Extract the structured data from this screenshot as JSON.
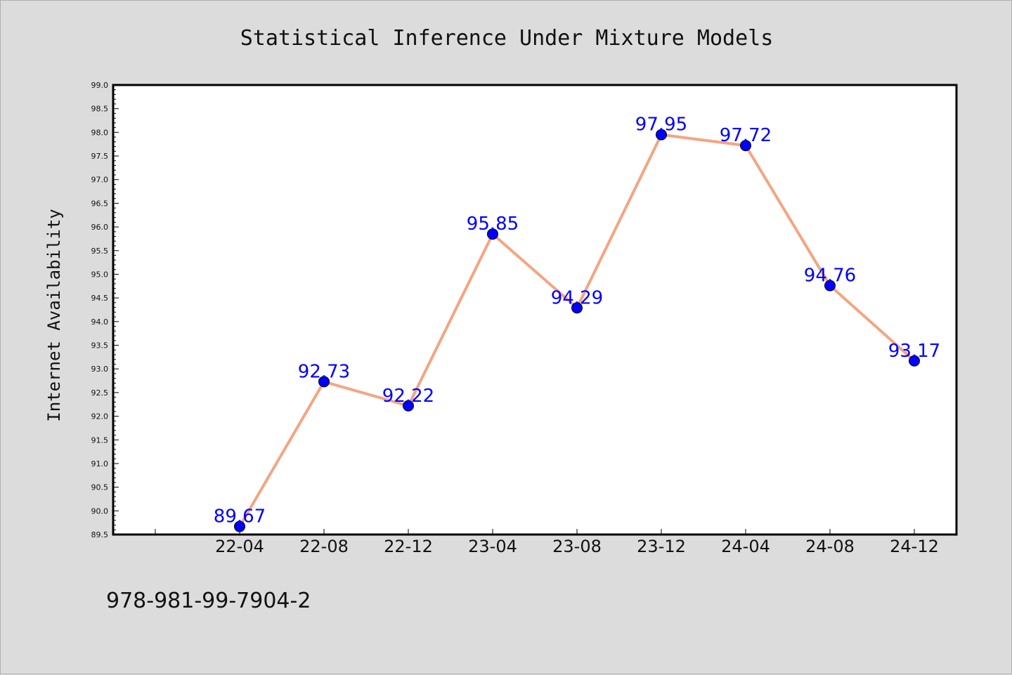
{
  "colors": {
    "background": "#dcdcdc",
    "plot_background": "#ffffff",
    "line": "#f4a582",
    "marker": "#0000ff",
    "data_label": "#0000ff"
  },
  "footer": {
    "isbn": "978-981-99-7904-2"
  },
  "chart_data": {
    "type": "line",
    "title": "Statistical Inference Under Mixture Models",
    "xlabel": "",
    "ylabel": "Internet Availability",
    "categories": [
      "22-04",
      "22-08",
      "22-12",
      "23-04",
      "23-08",
      "23-12",
      "24-04",
      "24-08",
      "24-12"
    ],
    "values": [
      89.67,
      92.73,
      92.22,
      95.85,
      94.29,
      97.95,
      97.72,
      94.76,
      93.17
    ],
    "data_labels": [
      "89.67",
      "92.73",
      "92.22",
      "95.85",
      "94.29",
      "97.95",
      "97.72",
      "94.76",
      "93.17"
    ],
    "ylim": [
      89.5,
      99.0
    ],
    "yticks": [
      "89.5",
      "90.0",
      "90.5",
      "91.0",
      "91.5",
      "92.0",
      "92.5",
      "93.0",
      "93.5",
      "94.0",
      "94.5",
      "95.0",
      "95.5",
      "96.0",
      "96.5",
      "97.0",
      "97.5",
      "98.0",
      "98.5",
      "99.0"
    ],
    "grid": false,
    "legend": "none"
  }
}
